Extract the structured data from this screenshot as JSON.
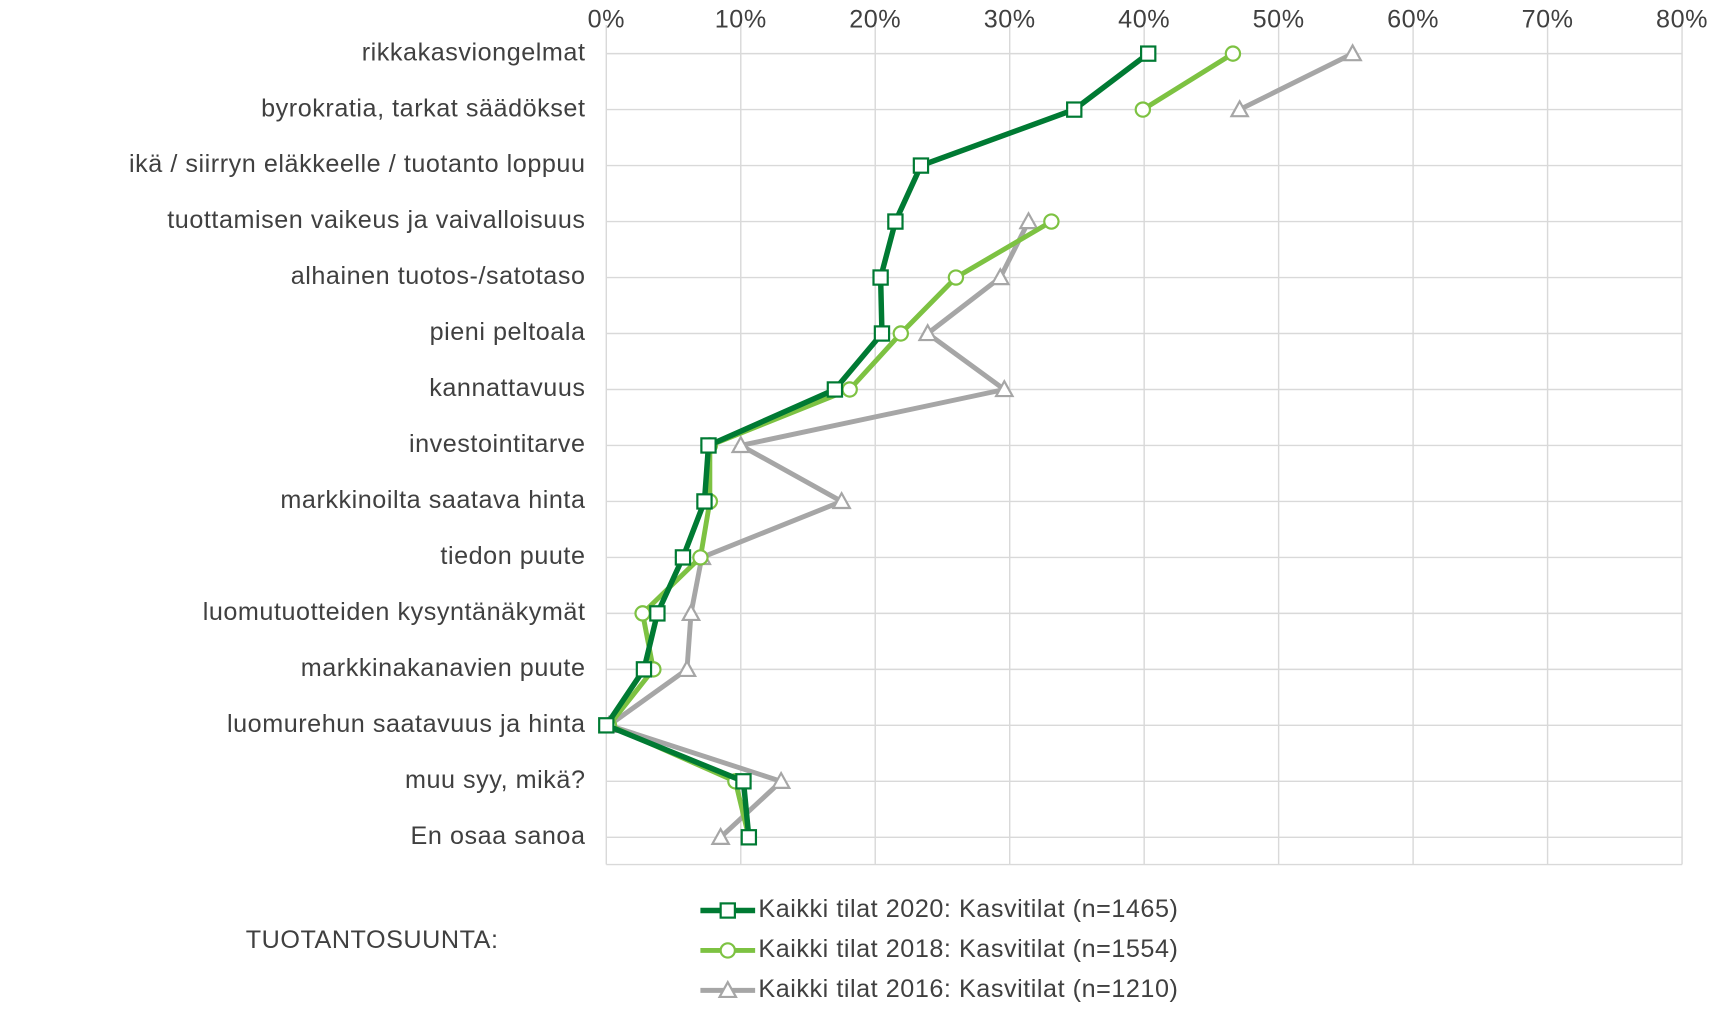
{
  "chart_data": {
    "type": "line",
    "orientation": "horizontal",
    "categories": [
      "rikkakasviongelmat",
      "byrokratia, tarkat säädökset",
      "ikä / siirryn eläkkeelle / tuotanto loppuu",
      "tuottamisen vaikeus ja vaivalloisuus",
      "alhainen tuotos-/satotaso",
      "pieni peltoala",
      "kannattavuus",
      "investointitarve",
      "markkinoilta saatava hinta",
      "tiedon puute",
      "luomutuotteiden kysyntänäkymät",
      "markkinakanavien puute",
      "luomurehun saatavuus ja hinta",
      "muu syy, mikä?",
      "En osaa sanoa"
    ],
    "series": [
      {
        "name": "Kaikki tilat 2020: Kasvitilat (n=1465)",
        "color": "#007a33",
        "marker": "square",
        "values": [
          40.3,
          34.8,
          23.4,
          21.5,
          20.4,
          20.5,
          17.0,
          7.6,
          7.3,
          5.7,
          3.8,
          2.8,
          0,
          10.2,
          10.6
        ]
      },
      {
        "name": "Kaikki tilat 2018: Kasvitilat (n=1554)",
        "color": "#7dc242",
        "marker": "circle",
        "values": [
          46.6,
          39.9,
          null,
          33.1,
          26.0,
          21.9,
          18.1,
          7.7,
          7.7,
          7.0,
          2.7,
          3.5,
          0.2,
          9.6,
          10.6
        ]
      },
      {
        "name": "Kaikki tilat 2016: Kasvitilat (n=1210)",
        "color": "#a6a6a6",
        "marker": "triangle",
        "values": [
          55.5,
          47.1,
          null,
          31.4,
          29.3,
          23.9,
          29.6,
          10.0,
          17.5,
          7.1,
          6.3,
          6.0,
          0.2,
          13.0,
          8.5
        ]
      }
    ],
    "xlim": [
      0,
      80
    ],
    "xticks": [
      {
        "value": 0,
        "label": "0%"
      },
      {
        "value": 10,
        "label": "10%"
      },
      {
        "value": 20,
        "label": "20%"
      },
      {
        "value": 30,
        "label": "30%"
      },
      {
        "value": 40,
        "label": "40%"
      },
      {
        "value": 50,
        "label": "50%"
      },
      {
        "value": 60,
        "label": "60%"
      },
      {
        "value": 70,
        "label": "70%"
      },
      {
        "value": 80,
        "label": "80%"
      }
    ],
    "grid": true,
    "legend_title": "TUOTANTOSUUNTA:",
    "legend": "bottom"
  }
}
